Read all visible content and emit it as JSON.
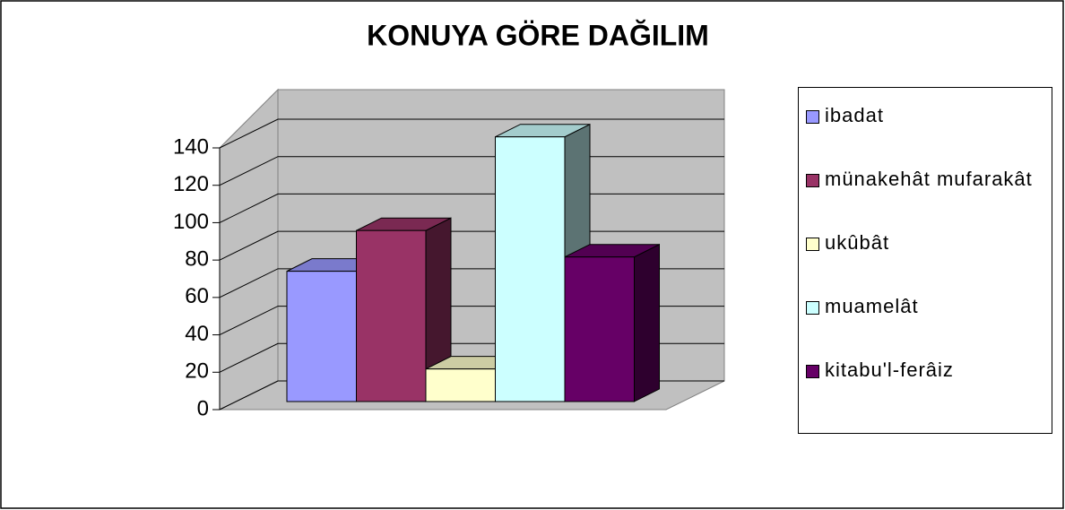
{
  "chart_data": {
    "type": "bar3d",
    "title": "KONUYA GÖRE DAĞILIM",
    "series": [
      {
        "name": "ibadat",
        "color": "#9999ff",
        "values": [
          64
        ]
      },
      {
        "name": "münakehât mufarakât",
        "color": "#993366",
        "values": [
          84
        ]
      },
      {
        "name": "ukûbât",
        "color": "#ffffcc",
        "values": [
          16
        ]
      },
      {
        "name": "muamelât",
        "color": "#ccffff",
        "values": [
          130
        ]
      },
      {
        "name": "kitabu'l-ferâiz",
        "color": "#660066",
        "values": [
          71
        ]
      }
    ],
    "ylim": [
      0,
      140
    ],
    "yticks": [
      0,
      20,
      40,
      60,
      80,
      100,
      120,
      140
    ],
    "grid": true,
    "legend": "right"
  }
}
